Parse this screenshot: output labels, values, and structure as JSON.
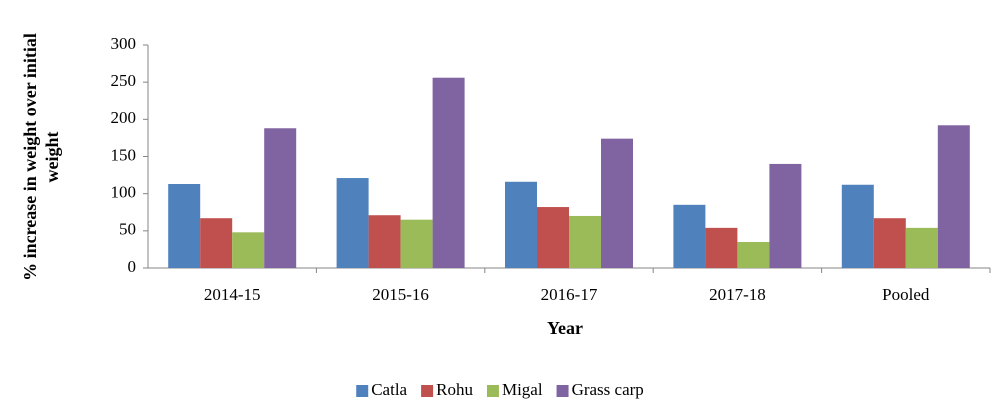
{
  "chart_data": {
    "type": "bar",
    "x_label": "Year",
    "y_label": [
      "% increase in weight over initial",
      "weight"
    ],
    "categories": [
      "2014-15",
      "2015-16",
      "2016-17",
      "2017-18",
      "Pooled"
    ],
    "series": [
      {
        "name": "Catla",
        "color": "#4f81bd",
        "values": [
          113,
          121,
          116,
          85,
          112
        ]
      },
      {
        "name": "Rohu",
        "color": "#c0504d",
        "values": [
          67,
          71,
          82,
          54,
          67
        ]
      },
      {
        "name": "Migal",
        "color": "#9bbb59",
        "values": [
          48,
          65,
          70,
          35,
          54
        ]
      },
      {
        "name": "Grass carp",
        "color": "#8064a2",
        "values": [
          188,
          256,
          174,
          140,
          192
        ]
      }
    ],
    "ylim": [
      0,
      300
    ],
    "yticks": [
      0,
      50,
      100,
      150,
      200,
      250,
      300
    ],
    "grid": false,
    "legend": "bottom"
  }
}
